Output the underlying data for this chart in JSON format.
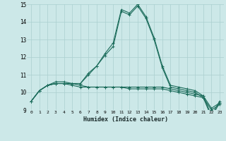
{
  "xlabel": "Humidex (Indice chaleur)",
  "background_color": "#cce8e8",
  "grid_color": "#aacfcf",
  "line_color": "#1a6b5a",
  "xlim": [
    -0.5,
    23.5
  ],
  "ylim": [
    9,
    15
  ],
  "xticks": [
    0,
    1,
    2,
    3,
    4,
    5,
    6,
    7,
    8,
    9,
    10,
    11,
    12,
    13,
    14,
    15,
    16,
    17,
    18,
    19,
    20,
    21,
    22,
    23
  ],
  "yticks": [
    9,
    10,
    11,
    12,
    13,
    14,
    15
  ],
  "curves": [
    [
      9.5,
      10.1,
      10.4,
      10.5,
      10.5,
      10.5,
      10.5,
      11.1,
      11.5,
      12.2,
      12.8,
      14.7,
      14.5,
      15.0,
      14.3,
      13.1,
      11.5,
      10.4,
      10.3,
      10.2,
      10.1,
      9.8,
      8.7,
      9.5
    ],
    [
      9.5,
      10.1,
      10.4,
      10.6,
      10.6,
      10.5,
      10.4,
      10.3,
      10.3,
      10.3,
      10.3,
      10.3,
      10.3,
      10.3,
      10.3,
      10.3,
      10.3,
      10.2,
      10.1,
      10.0,
      9.9,
      9.8,
      9.1,
      9.4
    ],
    [
      9.5,
      10.1,
      10.4,
      10.5,
      10.5,
      10.4,
      10.3,
      10.3,
      10.3,
      10.3,
      10.3,
      10.3,
      10.2,
      10.2,
      10.2,
      10.2,
      10.2,
      10.1,
      10.0,
      9.9,
      9.8,
      9.7,
      9.0,
      9.3
    ],
    [
      9.5,
      10.1,
      10.4,
      10.5,
      10.5,
      10.5,
      10.5,
      11.0,
      11.5,
      12.1,
      12.6,
      14.6,
      14.4,
      14.9,
      14.2,
      13.0,
      11.4,
      10.3,
      10.2,
      10.1,
      10.0,
      9.7,
      8.6,
      9.4
    ]
  ]
}
